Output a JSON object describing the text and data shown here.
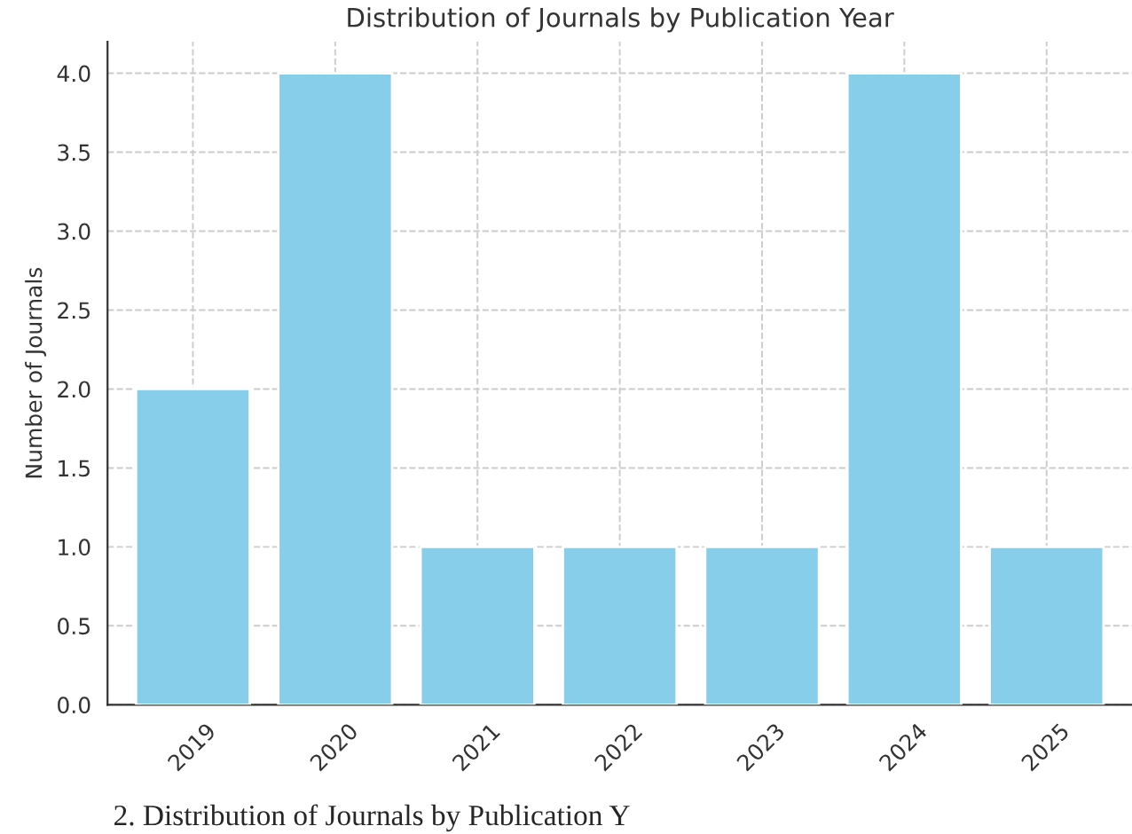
{
  "chart_data": {
    "type": "bar",
    "title": "Distribution of Journals by Publication Year",
    "ylabel": "Number of Journals",
    "categories": [
      "2019",
      "2020",
      "2021",
      "2022",
      "2023",
      "2024",
      "2025"
    ],
    "values": [
      2,
      4,
      1,
      1,
      1,
      4,
      1
    ],
    "color": "#87ceeb",
    "ylim": [
      0,
      4.2
    ],
    "yticks": [
      {
        "value": 0,
        "label": "0.0"
      },
      {
        "value": 0.5,
        "label": "0.5"
      },
      {
        "value": 1,
        "label": "1.0"
      },
      {
        "value": 1.5,
        "label": "1.5"
      },
      {
        "value": 2,
        "label": "2.0"
      },
      {
        "value": 2.5,
        "label": "2.5"
      },
      {
        "value": 3,
        "label": "3.0"
      },
      {
        "value": 3.5,
        "label": "3.5"
      },
      {
        "value": 4,
        "label": "4.0"
      }
    ],
    "grid": true,
    "annotations": [
      "2. Distribution of Journals by Publication Y"
    ]
  }
}
